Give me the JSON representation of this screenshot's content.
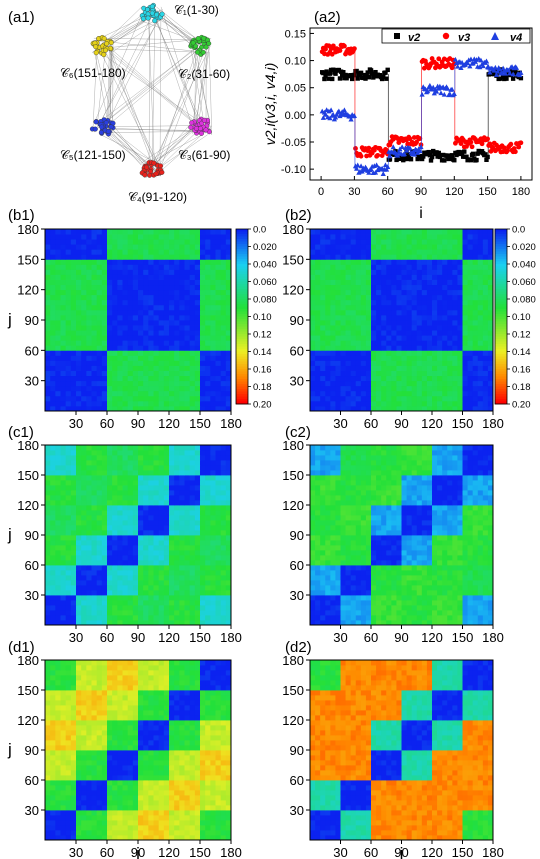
{
  "figure": {
    "panel_labels": [
      "(a1)",
      "(a2)",
      "(b1)",
      "(b2)",
      "(c1)",
      "(c2)",
      "(d1)",
      "(d2)"
    ]
  },
  "network": {
    "clusters": [
      {
        "id": "C1",
        "label": "𝒞₁(1-30)",
        "color": "#29d6e6"
      },
      {
        "id": "C2",
        "label": "𝒞₂(31-60)",
        "color": "#33cc33"
      },
      {
        "id": "C3",
        "label": "𝒞₃(61-90)",
        "color": "#dd33dd"
      },
      {
        "id": "C4",
        "label": "𝒞₄(91-120)",
        "color": "#e8221c"
      },
      {
        "id": "C5",
        "label": "𝒞₅(121-150)",
        "color": "#2a3fe0"
      },
      {
        "id": "C6",
        "label": "𝒞₆(151-180)",
        "color": "#e6d21a"
      }
    ]
  },
  "colors": {
    "v2": "#000000",
    "v3": "#ff0000",
    "v4": "#1f3fe0",
    "colorbar_stops": [
      "#0b22f0",
      "#1bd0f2",
      "#22e03a",
      "#ecf025",
      "#ff8a00",
      "#ff0000"
    ]
  },
  "chart_data": [
    {
      "panel": "(a2)",
      "type": "scatter",
      "xlabel": "i",
      "ylabel": "v2,i(v3,i, v4,i)",
      "xlim": [
        -10,
        190
      ],
      "ylim": [
        -0.12,
        0.16
      ],
      "xticks": [
        0,
        30,
        60,
        90,
        120,
        150,
        180
      ],
      "yticks": [
        0.15,
        0.1,
        0.05,
        0.0,
        -0.05,
        -0.1
      ],
      "ytick_labels": [
        "0.15",
        "0.10",
        "0.05",
        "0.00",
        "-0.05",
        "-0.10"
      ],
      "legend_position": "top-right",
      "series": [
        {
          "name": "v2",
          "marker": "square",
          "color": "#000000",
          "segments": [
            [
              1,
              30,
              0.075
            ],
            [
              31,
              60,
              0.075
            ],
            [
              61,
              90,
              -0.075
            ],
            [
              91,
              120,
              -0.075
            ],
            [
              121,
              150,
              -0.075
            ],
            [
              151,
              180,
              0.075
            ]
          ]
        },
        {
          "name": "v3",
          "marker": "circle",
          "color": "#ff0000",
          "segments": [
            [
              1,
              30,
              0.12
            ],
            [
              31,
              60,
              -0.068
            ],
            [
              61,
              90,
              -0.048
            ],
            [
              91,
              120,
              0.095
            ],
            [
              121,
              150,
              -0.05
            ],
            [
              151,
              180,
              -0.06
            ]
          ]
        },
        {
          "name": "v4",
          "marker": "triangle",
          "color": "#1f3fe0",
          "segments": [
            [
              1,
              30,
              0.0
            ],
            [
              31,
              60,
              -0.1
            ],
            [
              61,
              90,
              -0.068
            ],
            [
              91,
              120,
              0.045
            ],
            [
              121,
              150,
              0.095
            ],
            [
              151,
              180,
              0.08
            ]
          ]
        }
      ],
      "legend_labels": [
        "v2",
        "v3",
        "v4"
      ]
    },
    {
      "panel": "(b1)",
      "type": "heatmap",
      "xlabel": "",
      "ylabel": "j",
      "clusters": 6,
      "nodes_per_cluster": 30,
      "xticks": [
        30,
        60,
        90,
        120,
        150,
        180
      ],
      "yticks": [
        30,
        60,
        90,
        120,
        150,
        180
      ],
      "value_range": [
        0.0,
        0.2
      ],
      "block_values": [
        [
          0.0,
          0.0,
          0.085,
          0.085,
          0.085,
          0.0
        ],
        [
          0.0,
          0.0,
          0.085,
          0.085,
          0.085,
          0.0
        ],
        [
          0.085,
          0.085,
          0.0,
          0.0,
          0.0,
          0.085
        ],
        [
          0.085,
          0.085,
          0.0,
          0.0,
          0.0,
          0.085
        ],
        [
          0.085,
          0.085,
          0.0,
          0.0,
          0.0,
          0.085
        ],
        [
          0.0,
          0.0,
          0.085,
          0.085,
          0.085,
          0.0
        ]
      ],
      "colorbar_ticks": [
        "0.0",
        "0.020",
        "0.040",
        "0.060",
        "0.080",
        "0.10",
        "0.12",
        "0.14",
        "0.16",
        "0.18",
        "0.20"
      ]
    },
    {
      "panel": "(b2)",
      "type": "heatmap",
      "xlabel": "",
      "ylabel": "",
      "clusters": 6,
      "nodes_per_cluster": 30,
      "xticks": [
        30,
        60,
        90,
        120,
        150,
        180
      ],
      "yticks": [
        30,
        60,
        90,
        120,
        150,
        180
      ],
      "value_range": [
        0.0,
        0.2
      ],
      "block_values": [
        [
          0.0,
          0.0,
          0.085,
          0.085,
          0.085,
          0.0
        ],
        [
          0.0,
          0.0,
          0.085,
          0.085,
          0.085,
          0.0
        ],
        [
          0.085,
          0.085,
          0.0,
          0.0,
          0.0,
          0.085
        ],
        [
          0.085,
          0.085,
          0.0,
          0.0,
          0.0,
          0.085
        ],
        [
          0.085,
          0.085,
          0.0,
          0.0,
          0.0,
          0.085
        ],
        [
          0.0,
          0.0,
          0.085,
          0.085,
          0.085,
          0.0
        ]
      ],
      "colorbar_ticks": [
        "0.0",
        "0.020",
        "0.040",
        "0.060",
        "0.080",
        "0.10",
        "0.12",
        "0.14",
        "0.16",
        "0.18",
        "0.20"
      ]
    },
    {
      "panel": "(c1)",
      "type": "heatmap",
      "xlabel": "",
      "ylabel": "j",
      "clusters": 6,
      "nodes_per_cluster": 30,
      "xticks": [
        30,
        60,
        90,
        120,
        150,
        180
      ],
      "yticks": [
        30,
        60,
        90,
        120,
        150,
        180
      ],
      "value_range": [
        0.0,
        0.2
      ],
      "block_values": [
        [
          0.0,
          0.05,
          0.09,
          0.08,
          0.09,
          0.05
        ],
        [
          0.05,
          0.0,
          0.05,
          0.09,
          0.08,
          0.09
        ],
        [
          0.09,
          0.05,
          0.0,
          0.05,
          0.09,
          0.08
        ],
        [
          0.08,
          0.09,
          0.05,
          0.0,
          0.05,
          0.09
        ],
        [
          0.09,
          0.08,
          0.09,
          0.05,
          0.0,
          0.05
        ],
        [
          0.05,
          0.09,
          0.08,
          0.09,
          0.05,
          0.0
        ]
      ]
    },
    {
      "panel": "(c2)",
      "type": "heatmap",
      "xlabel": "",
      "ylabel": "",
      "clusters": 6,
      "nodes_per_cluster": 30,
      "xticks": [
        30,
        60,
        90,
        120,
        150,
        180
      ],
      "yticks": [
        30,
        60,
        90,
        120,
        150,
        180
      ],
      "value_range": [
        0.0,
        0.2
      ],
      "block_values": [
        [
          0.0,
          0.03,
          0.095,
          0.09,
          0.095,
          0.03
        ],
        [
          0.03,
          0.0,
          0.09,
          0.095,
          0.09,
          0.085
        ],
        [
          0.095,
          0.09,
          0.0,
          0.03,
          0.095,
          0.09
        ],
        [
          0.09,
          0.095,
          0.03,
          0.0,
          0.03,
          0.095
        ],
        [
          0.095,
          0.09,
          0.095,
          0.03,
          0.0,
          0.03
        ],
        [
          0.03,
          0.085,
          0.09,
          0.095,
          0.03,
          0.0
        ]
      ]
    },
    {
      "panel": "(d1)",
      "type": "heatmap",
      "xlabel": "i",
      "ylabel": "j",
      "clusters": 6,
      "nodes_per_cluster": 30,
      "xticks": [
        30,
        60,
        90,
        120,
        150,
        180
      ],
      "yticks": [
        30,
        60,
        90,
        120,
        150,
        180
      ],
      "value_range": [
        0.0,
        0.2
      ],
      "block_values": [
        [
          0.0,
          0.09,
          0.13,
          0.15,
          0.13,
          0.09
        ],
        [
          0.09,
          0.0,
          0.09,
          0.13,
          0.15,
          0.13
        ],
        [
          0.13,
          0.09,
          0.0,
          0.09,
          0.13,
          0.15
        ],
        [
          0.15,
          0.13,
          0.09,
          0.0,
          0.09,
          0.13
        ],
        [
          0.13,
          0.15,
          0.13,
          0.09,
          0.0,
          0.09
        ],
        [
          0.09,
          0.13,
          0.15,
          0.13,
          0.09,
          0.0
        ]
      ]
    },
    {
      "panel": "(d2)",
      "type": "heatmap",
      "xlabel": "i",
      "ylabel": "",
      "clusters": 6,
      "nodes_per_cluster": 30,
      "xticks": [
        30,
        60,
        90,
        120,
        150,
        180
      ],
      "yticks": [
        30,
        60,
        90,
        120,
        150,
        180
      ],
      "value_range": [
        0.0,
        0.2
      ],
      "block_values": [
        [
          0.0,
          0.06,
          0.17,
          0.17,
          0.17,
          0.09
        ],
        [
          0.06,
          0.0,
          0.17,
          0.17,
          0.17,
          0.17
        ],
        [
          0.17,
          0.17,
          0.0,
          0.06,
          0.17,
          0.17
        ],
        [
          0.17,
          0.17,
          0.06,
          0.0,
          0.06,
          0.17
        ],
        [
          0.17,
          0.17,
          0.17,
          0.06,
          0.0,
          0.06
        ],
        [
          0.09,
          0.17,
          0.17,
          0.17,
          0.06,
          0.0
        ]
      ]
    }
  ]
}
